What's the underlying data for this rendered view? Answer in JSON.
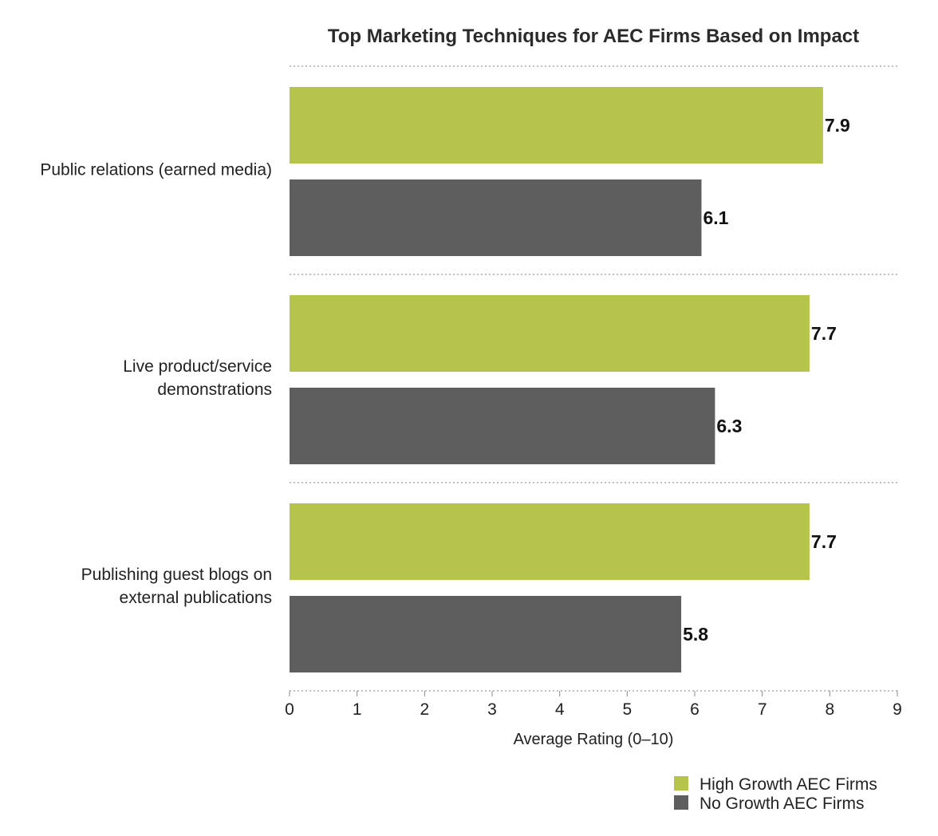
{
  "chart_data": {
    "type": "bar",
    "orientation": "horizontal",
    "title": "Top Marketing Techniques for AEC Firms Based on Impact",
    "xlabel": "Average Rating (0–10)",
    "ylabel": "",
    "xlim": [
      0,
      9
    ],
    "ticks": [
      "0",
      "1",
      "2",
      "3",
      "4",
      "5",
      "6",
      "7",
      "8",
      "9"
    ],
    "grid": false,
    "legend_position": "bottom-right",
    "categories": [
      [
        "Public relations (earned media)"
      ],
      [
        "Live product/service",
        "demonstrations"
      ],
      [
        "Publishing guest blogs on",
        "external publications"
      ]
    ],
    "series": [
      {
        "name": "High Growth AEC Firms",
        "color": "#b5c44b",
        "values": [
          7.9,
          7.7,
          7.7
        ],
        "labels": [
          "7.9",
          "7.7",
          "7.7"
        ]
      },
      {
        "name": "No Growth AEC Firms",
        "color": "#5e5e5e",
        "values": [
          6.1,
          6.3,
          5.8
        ],
        "labels": [
          "6.1",
          "6.3",
          "5.8"
        ]
      }
    ]
  }
}
